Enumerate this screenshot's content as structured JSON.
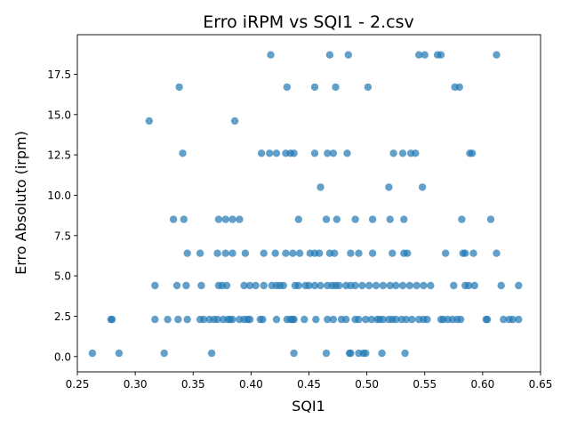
{
  "chart_data": {
    "type": "scatter",
    "title": "Erro iRPM vs SQI1 - 2.csv",
    "xlabel": "SQI1",
    "ylabel": "Erro Absoluto (irpm)",
    "xlim": [
      0.25,
      0.65
    ],
    "ylim": [
      -0.95,
      19.95
    ],
    "xticks": [
      0.25,
      0.3,
      0.35,
      0.4,
      0.45,
      0.5,
      0.55,
      0.6,
      0.65
    ],
    "xtick_labels": [
      "0.25",
      "0.30",
      "0.35",
      "0.40",
      "0.45",
      "0.50",
      "0.55",
      "0.60",
      "0.65"
    ],
    "yticks": [
      0.0,
      2.5,
      5.0,
      7.5,
      10.0,
      12.5,
      15.0,
      17.5
    ],
    "ytick_labels": [
      "0.0",
      "2.5",
      "5.0",
      "7.5",
      "10.0",
      "12.5",
      "15.0",
      "17.5"
    ],
    "grid": false,
    "marker_color": "#1f77b4",
    "series": [
      {
        "x": [
          0.263,
          0.286,
          0.325,
          0.366,
          0.437,
          0.465,
          0.485,
          0.486,
          0.493,
          0.497,
          0.499,
          0.513,
          0.533,
          0.279,
          0.28,
          0.317,
          0.328,
          0.337,
          0.345,
          0.356,
          0.359,
          0.364,
          0.368,
          0.371,
          0.376,
          0.38,
          0.382,
          0.384,
          0.39,
          0.394,
          0.397,
          0.399,
          0.408,
          0.41,
          0.422,
          0.431,
          0.434,
          0.436,
          0.437,
          0.446,
          0.456,
          0.466,
          0.471,
          0.478,
          0.482,
          0.49,
          0.493,
          0.499,
          0.504,
          0.509,
          0.511,
          0.514,
          0.519,
          0.522,
          0.525,
          0.53,
          0.534,
          0.539,
          0.545,
          0.549,
          0.552,
          0.564,
          0.566,
          0.57,
          0.574,
          0.578,
          0.581,
          0.603,
          0.604,
          0.618,
          0.623,
          0.626,
          0.631,
          0.317,
          0.336,
          0.344,
          0.357,
          0.372,
          0.375,
          0.379,
          0.394,
          0.399,
          0.404,
          0.411,
          0.418,
          0.422,
          0.425,
          0.428,
          0.438,
          0.441,
          0.447,
          0.45,
          0.455,
          0.46,
          0.466,
          0.47,
          0.473,
          0.476,
          0.482,
          0.486,
          0.49,
          0.496,
          0.502,
          0.508,
          0.514,
          0.52,
          0.525,
          0.531,
          0.537,
          0.543,
          0.549,
          0.555,
          0.575,
          0.585,
          0.588,
          0.593,
          0.616,
          0.631,
          0.345,
          0.356,
          0.371,
          0.378,
          0.384,
          0.395,
          0.411,
          0.421,
          0.43,
          0.436,
          0.442,
          0.451,
          0.455,
          0.459,
          0.468,
          0.472,
          0.486,
          0.493,
          0.505,
          0.522,
          0.532,
          0.535,
          0.568,
          0.583,
          0.585,
          0.592,
          0.612,
          0.333,
          0.342,
          0.372,
          0.378,
          0.384,
          0.39,
          0.441,
          0.465,
          0.474,
          0.49,
          0.505,
          0.52,
          0.532,
          0.582,
          0.607,
          0.46,
          0.519,
          0.548,
          0.341,
          0.409,
          0.416,
          0.422,
          0.43,
          0.434,
          0.437,
          0.455,
          0.466,
          0.471,
          0.483,
          0.523,
          0.531,
          0.538,
          0.542,
          0.589,
          0.591,
          0.312,
          0.386,
          0.338,
          0.431,
          0.455,
          0.473,
          0.501,
          0.576,
          0.58,
          0.417,
          0.468,
          0.484,
          0.545,
          0.55,
          0.561,
          0.564,
          0.612
        ]
      }
    ],
    "y": [
      0.2,
      0.2,
      0.2,
      0.2,
      0.2,
      0.2,
      0.2,
      0.2,
      0.2,
      0.2,
      0.2,
      0.2,
      0.2,
      2.3,
      2.3,
      2.3,
      2.3,
      2.3,
      2.3,
      2.3,
      2.3,
      2.3,
      2.3,
      2.3,
      2.3,
      2.3,
      2.3,
      2.3,
      2.3,
      2.3,
      2.3,
      2.3,
      2.3,
      2.3,
      2.3,
      2.3,
      2.3,
      2.3,
      2.3,
      2.3,
      2.3,
      2.3,
      2.3,
      2.3,
      2.3,
      2.3,
      2.3,
      2.3,
      2.3,
      2.3,
      2.3,
      2.3,
      2.3,
      2.3,
      2.3,
      2.3,
      2.3,
      2.3,
      2.3,
      2.3,
      2.3,
      2.3,
      2.3,
      2.3,
      2.3,
      2.3,
      2.3,
      2.3,
      2.3,
      2.3,
      2.3,
      2.3,
      2.3,
      4.4,
      4.4,
      4.4,
      4.4,
      4.4,
      4.4,
      4.4,
      4.4,
      4.4,
      4.4,
      4.4,
      4.4,
      4.4,
      4.4,
      4.4,
      4.4,
      4.4,
      4.4,
      4.4,
      4.4,
      4.4,
      4.4,
      4.4,
      4.4,
      4.4,
      4.4,
      4.4,
      4.4,
      4.4,
      4.4,
      4.4,
      4.4,
      4.4,
      4.4,
      4.4,
      4.4,
      4.4,
      4.4,
      4.4,
      4.4,
      4.4,
      4.4,
      4.4,
      4.4,
      4.4,
      6.4,
      6.4,
      6.4,
      6.4,
      6.4,
      6.4,
      6.4,
      6.4,
      6.4,
      6.4,
      6.4,
      6.4,
      6.4,
      6.4,
      6.4,
      6.4,
      6.4,
      6.4,
      6.4,
      6.4,
      6.4,
      6.4,
      6.4,
      6.4,
      6.4,
      6.4,
      6.4,
      8.5,
      8.5,
      8.5,
      8.5,
      8.5,
      8.5,
      8.5,
      8.5,
      8.5,
      8.5,
      8.5,
      8.5,
      8.5,
      8.5,
      8.5,
      10.5,
      10.5,
      10.5,
      12.6,
      12.6,
      12.6,
      12.6,
      12.6,
      12.6,
      12.6,
      12.6,
      12.6,
      12.6,
      12.6,
      12.6,
      12.6,
      12.6,
      12.6,
      12.6,
      12.6,
      14.6,
      14.6,
      16.7,
      16.7,
      16.7,
      16.7,
      16.7,
      16.7,
      16.7,
      18.7,
      18.7,
      18.7,
      18.7,
      18.7,
      18.7,
      18.7,
      18.7
    ]
  }
}
